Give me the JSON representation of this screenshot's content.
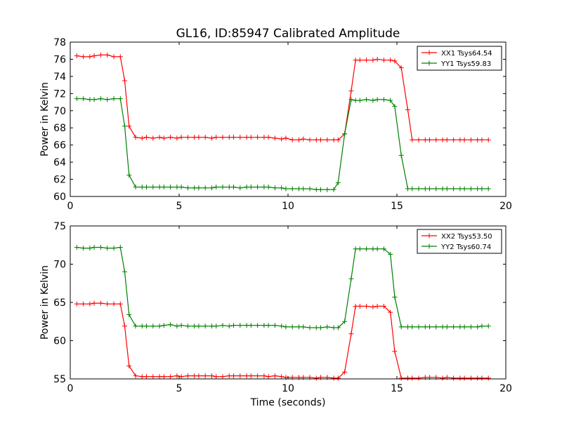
{
  "title": "GL16, ID:85947 Calibrated Amplitude",
  "xlabel": "Time (seconds)",
  "chart_data": [
    {
      "type": "line",
      "ylabel": "Power in Kelvin",
      "xlim": [
        0,
        20
      ],
      "ylim": [
        60,
        78
      ],
      "xticks": [
        0,
        5,
        10,
        15,
        20
      ],
      "yticks": [
        60,
        62,
        64,
        66,
        68,
        70,
        72,
        74,
        76,
        78
      ],
      "legend_position": "top-right",
      "series": [
        {
          "name": "XX1 Tsys64.54",
          "color": "#ff0000",
          "x": [
            0.3,
            0.6,
            0.9,
            1.1,
            1.4,
            1.7,
            2.0,
            2.3,
            2.5,
            2.7,
            3.0,
            3.3,
            3.5,
            3.8,
            4.1,
            4.3,
            4.6,
            4.9,
            5.1,
            5.4,
            5.7,
            5.9,
            6.2,
            6.5,
            6.7,
            7.0,
            7.3,
            7.5,
            7.8,
            8.1,
            8.3,
            8.6,
            8.9,
            9.1,
            9.4,
            9.7,
            9.9,
            10.2,
            10.5,
            10.7,
            11.0,
            11.3,
            11.5,
            11.8,
            12.1,
            12.3,
            12.6,
            12.9,
            13.1,
            13.3,
            13.6,
            13.9,
            14.1,
            14.4,
            14.7,
            14.9,
            15.2,
            15.5,
            15.7,
            16.0,
            16.3,
            16.5,
            16.8,
            17.1,
            17.3,
            17.6,
            17.9,
            18.1,
            18.4,
            18.7,
            18.9,
            19.2
          ],
          "y": [
            76.4,
            76.3,
            76.3,
            76.4,
            76.5,
            76.5,
            76.3,
            76.3,
            73.5,
            68.2,
            66.9,
            66.8,
            66.9,
            66.8,
            66.9,
            66.8,
            66.9,
            66.8,
            66.9,
            66.9,
            66.9,
            66.9,
            66.9,
            66.8,
            66.9,
            66.9,
            66.9,
            66.9,
            66.9,
            66.9,
            66.9,
            66.9,
            66.9,
            66.9,
            66.8,
            66.7,
            66.8,
            66.6,
            66.6,
            66.7,
            66.6,
            66.6,
            66.6,
            66.6,
            66.6,
            66.6,
            67.3,
            72.3,
            75.9,
            75.9,
            75.9,
            75.9,
            76.0,
            75.9,
            75.9,
            75.8,
            75.0,
            70.1,
            66.6,
            66.6,
            66.6,
            66.6,
            66.6,
            66.6,
            66.6,
            66.6,
            66.6,
            66.6,
            66.6,
            66.6,
            66.6,
            66.6
          ]
        },
        {
          "name": "YY1 Tsys59.83",
          "color": "#008000",
          "x": [
            0.3,
            0.6,
            0.9,
            1.1,
            1.4,
            1.7,
            2.0,
            2.3,
            2.5,
            2.7,
            3.0,
            3.3,
            3.5,
            3.8,
            4.1,
            4.3,
            4.6,
            4.9,
            5.1,
            5.4,
            5.7,
            5.9,
            6.2,
            6.5,
            6.7,
            7.0,
            7.3,
            7.5,
            7.8,
            8.1,
            8.3,
            8.6,
            8.9,
            9.1,
            9.4,
            9.7,
            9.9,
            10.2,
            10.5,
            10.7,
            11.0,
            11.3,
            11.5,
            11.8,
            12.1,
            12.3,
            12.6,
            12.9,
            13.1,
            13.3,
            13.6,
            13.9,
            14.1,
            14.4,
            14.7,
            14.9,
            15.2,
            15.5,
            15.7,
            16.0,
            16.3,
            16.5,
            16.8,
            17.1,
            17.3,
            17.6,
            17.9,
            18.1,
            18.4,
            18.7,
            18.9,
            19.2
          ],
          "y": [
            71.4,
            71.4,
            71.3,
            71.3,
            71.4,
            71.3,
            71.4,
            71.4,
            68.2,
            62.5,
            61.1,
            61.1,
            61.1,
            61.1,
            61.1,
            61.1,
            61.1,
            61.1,
            61.1,
            61.0,
            61.0,
            61.0,
            61.0,
            61.0,
            61.1,
            61.1,
            61.1,
            61.1,
            61.0,
            61.1,
            61.1,
            61.1,
            61.1,
            61.1,
            61.0,
            61.0,
            60.9,
            60.9,
            60.9,
            60.9,
            60.9,
            60.8,
            60.8,
            60.8,
            60.8,
            61.6,
            67.3,
            71.3,
            71.2,
            71.2,
            71.3,
            71.2,
            71.3,
            71.3,
            71.2,
            70.5,
            64.8,
            60.9,
            60.9,
            60.9,
            60.9,
            60.9,
            60.9,
            60.9,
            60.9,
            60.9,
            60.9,
            60.9,
            60.9,
            60.9,
            60.9,
            60.9
          ]
        }
      ]
    },
    {
      "type": "line",
      "ylabel": "Power in Kelvin",
      "xlim": [
        0,
        20
      ],
      "ylim": [
        55,
        75
      ],
      "xticks": [
        0,
        5,
        10,
        15,
        20
      ],
      "yticks": [
        55,
        60,
        65,
        70,
        75
      ],
      "legend_position": "top-right",
      "series": [
        {
          "name": "XX2 Tsys53.50",
          "color": "#ff0000",
          "x": [
            0.3,
            0.6,
            0.9,
            1.1,
            1.4,
            1.7,
            2.0,
            2.3,
            2.5,
            2.7,
            3.0,
            3.3,
            3.5,
            3.8,
            4.1,
            4.3,
            4.6,
            4.9,
            5.1,
            5.4,
            5.7,
            5.9,
            6.2,
            6.5,
            6.7,
            7.0,
            7.3,
            7.5,
            7.8,
            8.1,
            8.3,
            8.6,
            8.9,
            9.1,
            9.4,
            9.7,
            9.9,
            10.2,
            10.5,
            10.7,
            11.0,
            11.3,
            11.5,
            11.8,
            12.1,
            12.3,
            12.6,
            12.9,
            13.1,
            13.3,
            13.6,
            13.9,
            14.1,
            14.4,
            14.7,
            14.9,
            15.2,
            15.5,
            15.7,
            16.0,
            16.3,
            16.5,
            16.8,
            17.1,
            17.3,
            17.6,
            17.9,
            18.1,
            18.4,
            18.7,
            18.9,
            19.2
          ],
          "y": [
            64.8,
            64.8,
            64.8,
            64.9,
            64.9,
            64.8,
            64.8,
            64.8,
            61.9,
            56.7,
            55.4,
            55.3,
            55.3,
            55.3,
            55.3,
            55.3,
            55.3,
            55.4,
            55.3,
            55.4,
            55.4,
            55.4,
            55.4,
            55.4,
            55.3,
            55.3,
            55.4,
            55.4,
            55.4,
            55.4,
            55.4,
            55.4,
            55.4,
            55.3,
            55.4,
            55.3,
            55.2,
            55.2,
            55.2,
            55.2,
            55.2,
            55.1,
            55.2,
            55.2,
            55.1,
            55.1,
            55.9,
            60.9,
            64.5,
            64.5,
            64.5,
            64.4,
            64.5,
            64.5,
            63.7,
            58.6,
            55.1,
            55.1,
            55.1,
            55.1,
            55.2,
            55.2,
            55.2,
            55.1,
            55.2,
            55.1,
            55.1,
            55.1,
            55.1,
            55.1,
            55.1,
            55.1
          ]
        },
        {
          "name": "YY2 Tsys60.74",
          "color": "#008000",
          "x": [
            0.3,
            0.6,
            0.9,
            1.1,
            1.4,
            1.7,
            2.0,
            2.3,
            2.5,
            2.7,
            3.0,
            3.3,
            3.5,
            3.8,
            4.1,
            4.3,
            4.6,
            4.9,
            5.1,
            5.4,
            5.7,
            5.9,
            6.2,
            6.5,
            6.7,
            7.0,
            7.3,
            7.5,
            7.8,
            8.1,
            8.3,
            8.6,
            8.9,
            9.1,
            9.4,
            9.7,
            9.9,
            10.2,
            10.5,
            10.7,
            11.0,
            11.3,
            11.5,
            11.8,
            12.1,
            12.3,
            12.6,
            12.9,
            13.1,
            13.3,
            13.6,
            13.9,
            14.1,
            14.4,
            14.7,
            14.9,
            15.2,
            15.5,
            15.7,
            16.0,
            16.3,
            16.5,
            16.8,
            17.1,
            17.3,
            17.6,
            17.9,
            18.1,
            18.4,
            18.7,
            18.9,
            19.2
          ],
          "y": [
            72.2,
            72.1,
            72.1,
            72.2,
            72.2,
            72.1,
            72.1,
            72.2,
            69.0,
            63.4,
            61.9,
            61.9,
            61.9,
            61.9,
            61.9,
            62.0,
            62.1,
            61.9,
            62.0,
            61.9,
            61.9,
            61.9,
            61.9,
            61.9,
            61.9,
            62.0,
            61.9,
            62.0,
            62.0,
            62.0,
            62.0,
            62.0,
            62.0,
            62.0,
            62.0,
            61.9,
            61.8,
            61.8,
            61.8,
            61.8,
            61.7,
            61.7,
            61.7,
            61.8,
            61.7,
            61.7,
            62.5,
            68.1,
            72.0,
            72.0,
            72.0,
            72.0,
            72.0,
            72.0,
            71.3,
            65.7,
            61.8,
            61.8,
            61.8,
            61.8,
            61.8,
            61.8,
            61.8,
            61.8,
            61.8,
            61.8,
            61.8,
            61.8,
            61.8,
            61.8,
            61.9,
            61.9
          ]
        }
      ]
    }
  ]
}
